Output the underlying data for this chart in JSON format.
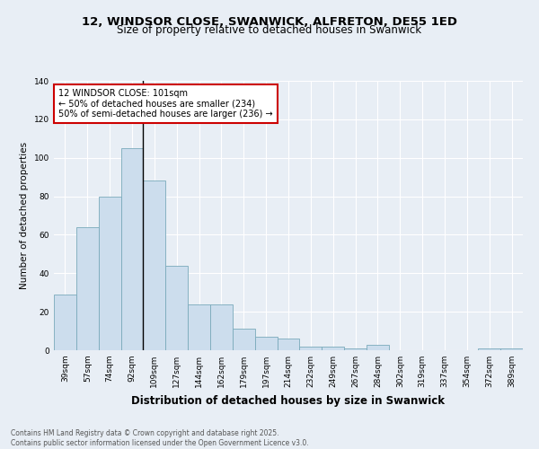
{
  "title": "12, WINDSOR CLOSE, SWANWICK, ALFRETON, DE55 1ED",
  "subtitle": "Size of property relative to detached houses in Swanwick",
  "xlabel": "Distribution of detached houses by size in Swanwick",
  "ylabel": "Number of detached properties",
  "categories": [
    "39sqm",
    "57sqm",
    "74sqm",
    "92sqm",
    "109sqm",
    "127sqm",
    "144sqm",
    "162sqm",
    "179sqm",
    "197sqm",
    "214sqm",
    "232sqm",
    "249sqm",
    "267sqm",
    "284sqm",
    "302sqm",
    "319sqm",
    "337sqm",
    "354sqm",
    "372sqm",
    "389sqm"
  ],
  "values": [
    29,
    64,
    80,
    105,
    88,
    44,
    24,
    24,
    11,
    7,
    6,
    2,
    2,
    1,
    3,
    0,
    0,
    0,
    0,
    1,
    1
  ],
  "bar_color": "#ccdded",
  "bar_edge_color": "#7aaabb",
  "background_color": "#e8eef5",
  "annotation_text": "12 WINDSOR CLOSE: 101sqm\n← 50% of detached houses are smaller (234)\n50% of semi-detached houses are larger (236) →",
  "annotation_box_color": "#ffffff",
  "annotation_box_edge": "#cc0000",
  "vline_x": 2.5,
  "ylim": [
    0,
    140
  ],
  "yticks": [
    0,
    20,
    40,
    60,
    80,
    100,
    120,
    140
  ],
  "footer": "Contains HM Land Registry data © Crown copyright and database right 2025.\nContains public sector information licensed under the Open Government Licence v3.0.",
  "title_fontsize": 9.5,
  "subtitle_fontsize": 8.5,
  "xlabel_fontsize": 8.5,
  "ylabel_fontsize": 7.5,
  "tick_fontsize": 6.5,
  "annotation_fontsize": 7,
  "footer_fontsize": 5.5
}
